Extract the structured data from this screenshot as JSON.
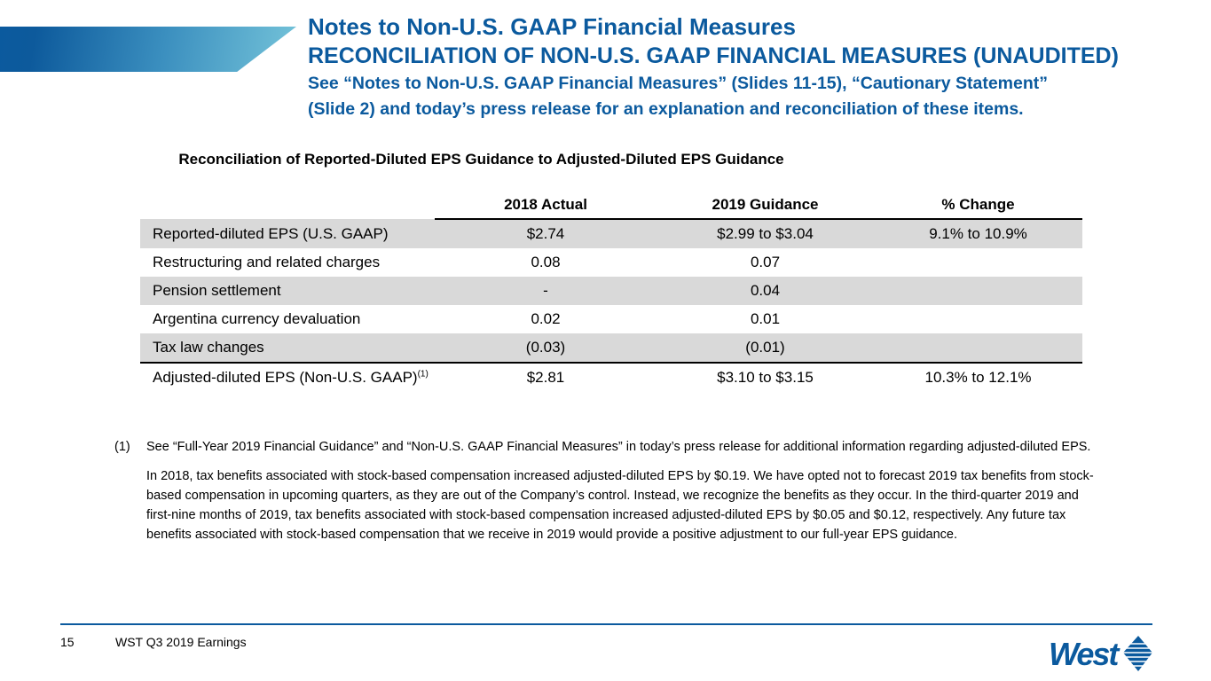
{
  "header": {
    "title": "Notes to Non-U.S. GAAP Financial Measures",
    "subtitle": "RECONCILIATION OF NON-U.S. GAAP FINANCIAL MEASURES (UNAUDITED)",
    "note_line1": "See “Notes to Non-U.S. GAAP Financial Measures” (Slides 11-15), “Cautionary Statement”",
    "note_line2": "(Slide 2) and today’s press release for an explanation and reconciliation of these items."
  },
  "table": {
    "caption": "Reconciliation of Reported-Diluted EPS Guidance to Adjusted-Diluted EPS Guidance",
    "columns": [
      "",
      "2018 Actual",
      "2019 Guidance",
      "% Change"
    ],
    "rows": [
      {
        "label": "Reported-diluted EPS (U.S. GAAP)",
        "a2018": "$2.74",
        "g2019": "$2.99 to $3.04",
        "change": "9.1% to 10.9%"
      },
      {
        "label": "Restructuring and related charges",
        "a2018": "0.08",
        "g2019": "0.07",
        "change": ""
      },
      {
        "label": "Pension settlement",
        "a2018": "-",
        "g2019": "0.04",
        "change": ""
      },
      {
        "label": "Argentina currency devaluation",
        "a2018": "0.02",
        "g2019": "0.01",
        "change": ""
      },
      {
        "label": "Tax law changes",
        "a2018": "(0.03)",
        "g2019": "(0.01)",
        "change": ""
      },
      {
        "label": "Adjusted-diluted EPS (Non-U.S. GAAP)",
        "label_sup": "(1)",
        "a2018": "$2.81",
        "g2019": "$3.10 to $3.15",
        "change": "10.3% to 12.1%"
      }
    ]
  },
  "notes": {
    "marker": "(1)",
    "footnote": "See “Full-Year 2019 Financial Guidance” and “Non-U.S. GAAP Financial Measures” in today’s press release for additional information regarding adjusted-diluted EPS.",
    "paragraph": "In 2018, tax benefits associated with stock-based compensation increased adjusted-diluted EPS by $0.19.  We have opted not to forecast 2019 tax benefits from stock-based compensation in upcoming quarters, as they are out of the Company’s control.  Instead, we recognize the benefits as they occur.  In the third-quarter 2019 and first-nine months of 2019, tax benefits associated with stock-based compensation increased adjusted-diluted EPS by $0.05 and $0.12, respectively.  Any future tax benefits associated with stock-based compensation that we receive in 2019 would provide a positive adjustment to our full-year EPS guidance."
  },
  "footer": {
    "page": "15",
    "label": "WST Q3 2019 Earnings",
    "logo_text": "West"
  },
  "colors": {
    "brand": "#0b5a9e",
    "row_shade": "#d9d9d9"
  }
}
